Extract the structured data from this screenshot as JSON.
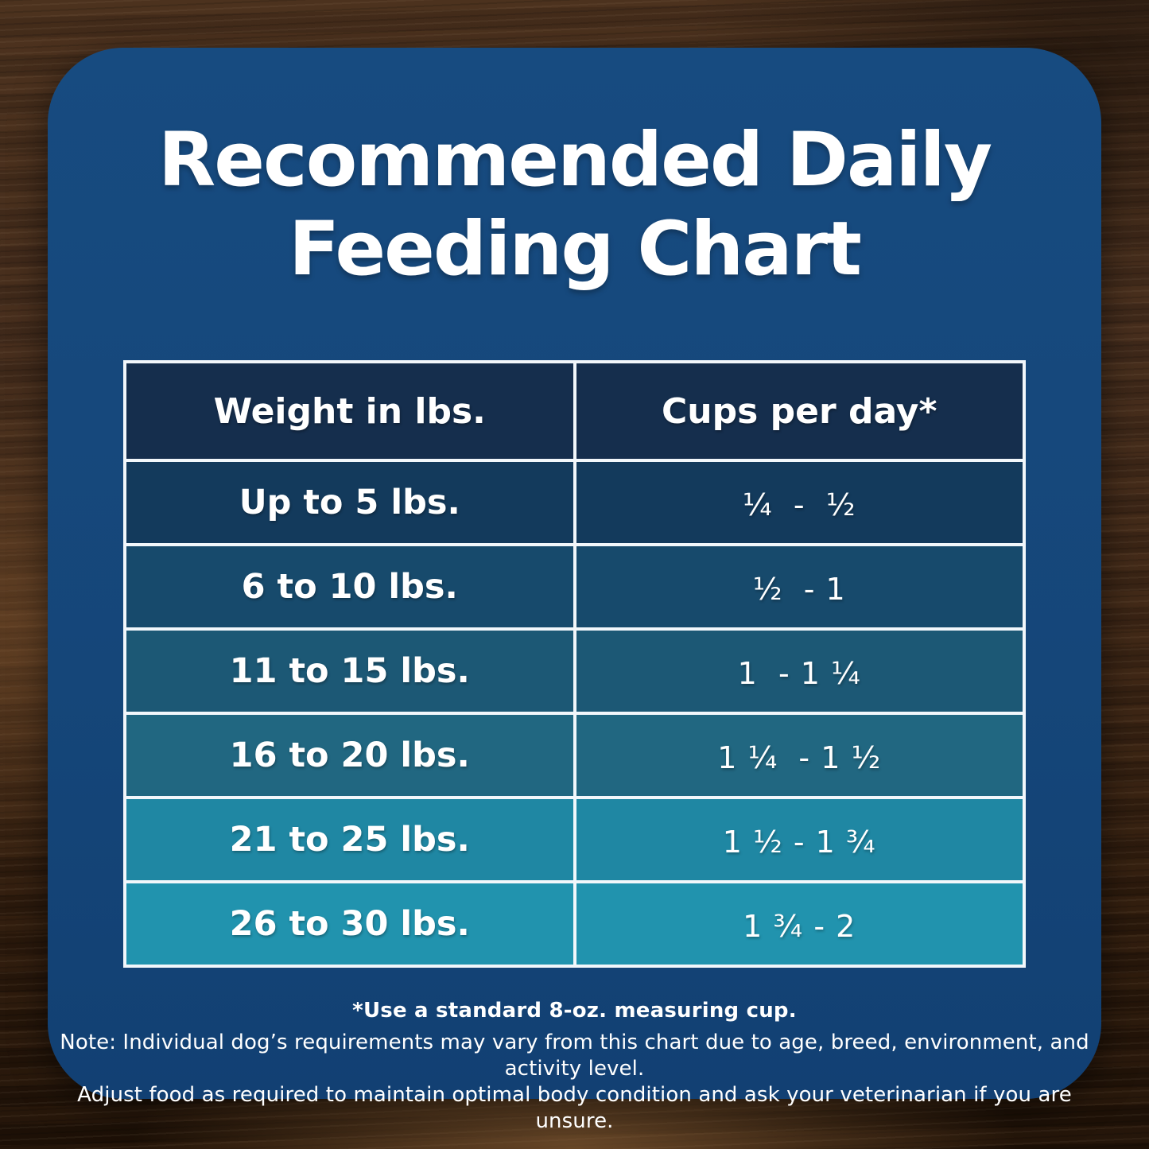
{
  "title": {
    "line1": "Recommended Daily",
    "line2": "Feeding Chart"
  },
  "table": {
    "header": {
      "weight": "Weight in lbs.",
      "cups": "Cups per day*"
    },
    "rows": [
      {
        "weight": "Up to 5 lbs.",
        "cups": "¼  -  ½",
        "bg": "#133a5c"
      },
      {
        "weight": "6 to 10 lbs.",
        "cups": "½  - 1",
        "bg": "#174a6c"
      },
      {
        "weight": "11 to 15 lbs.",
        "cups": "1  - 1 ¼",
        "bg": "#1c5875"
      },
      {
        "weight": "16 to 20 lbs.",
        "cups": "1 ¼  - 1 ½",
        "bg": "#216781"
      },
      {
        "weight": "21 to 25 lbs.",
        "cups": "1 ½ - 1 ¾",
        "bg": "#1f87a3"
      },
      {
        "weight": "26 to 30 lbs.",
        "cups": "1 ¾ - 2",
        "bg": "#2193ae"
      }
    ]
  },
  "footnote": {
    "line1": "*Use a standard 8-oz. measuring cup.",
    "line2": "Note: Individual dog’s requirements may vary from this chart due to age, breed, environment, and activity level.",
    "line3": "Adjust food as required to maintain optimal body condition and ask your veterinarian if you are unsure."
  },
  "colors": {
    "card_bg": "#164a7e",
    "header_bg": "#152e4d",
    "table_border": "#f2f7fb",
    "text": "#ffffff"
  },
  "chart_data": {
    "type": "table",
    "title": "Recommended Daily Feeding Chart",
    "columns": [
      "Weight in lbs.",
      "Cups per day*"
    ],
    "rows": [
      [
        "Up to 5 lbs.",
        "¼ - ½"
      ],
      [
        "6 to 10 lbs.",
        "½ - 1"
      ],
      [
        "11 to 15 lbs.",
        "1 - 1¼"
      ],
      [
        "16 to 20 lbs.",
        "1¼ - 1½"
      ],
      [
        "21 to 25 lbs.",
        "1½ - 1¾"
      ],
      [
        "26 to 30 lbs.",
        "1¾ - 2"
      ]
    ],
    "cups_per_day_numeric": [
      [
        0.25,
        0.5
      ],
      [
        0.5,
        1
      ],
      [
        1,
        1.25
      ],
      [
        1.25,
        1.5
      ],
      [
        1.5,
        1.75
      ],
      [
        1.75,
        2
      ]
    ],
    "row_background_gradient": [
      "#133a5c",
      "#174a6c",
      "#1c5875",
      "#216781",
      "#1f87a3",
      "#2193ae"
    ],
    "notes": [
      "*Use a standard 8-oz. measuring cup.",
      "Note: Individual dog’s requirements may vary from this chart due to age, breed, environment, and activity level.",
      "Adjust food as required to maintain optimal body condition and ask your veterinarian if you are unsure."
    ]
  }
}
